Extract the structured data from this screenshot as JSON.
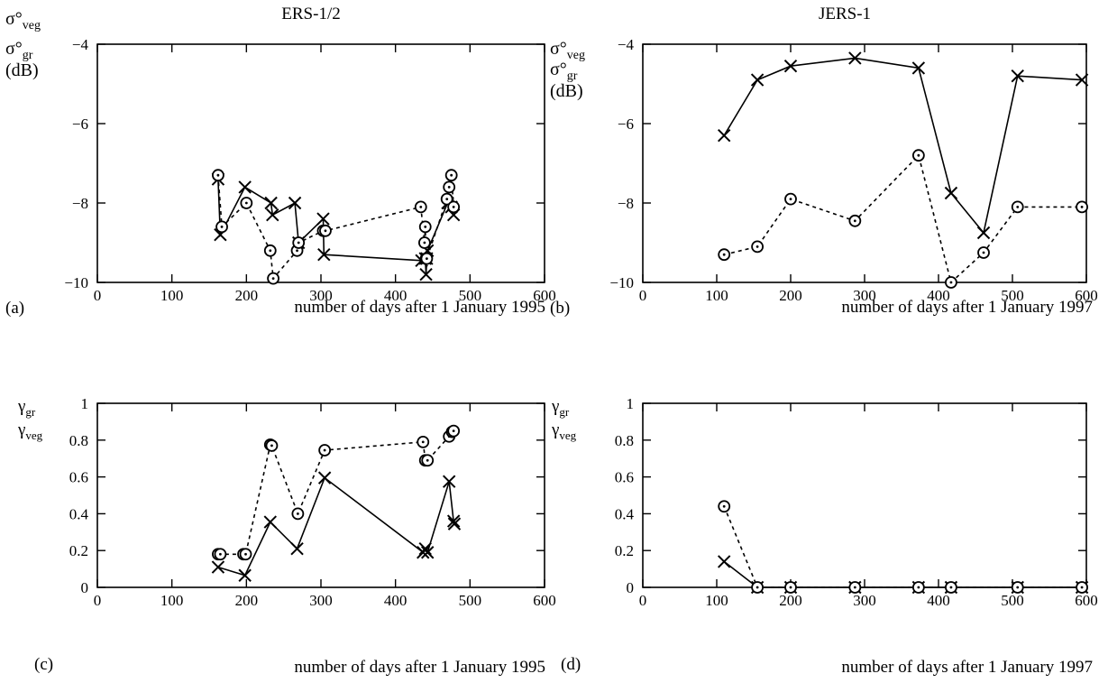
{
  "columns": [
    "ERS-1/2",
    "JERS-1"
  ],
  "legend": {
    "x_marker_series": "x markers, solid line",
    "o_marker_series": "circle markers, dashed line"
  },
  "chart_data": [
    {
      "type": "line",
      "panel_label": "(a)",
      "column_title": "ERS-1/2",
      "ylabel_lines": [
        "σ°veg",
        "σ°gr",
        "(dB)"
      ],
      "ylabel_parts": [
        [
          "σ°",
          "veg"
        ],
        [
          "σ°",
          "gr"
        ],
        [
          "(dB)",
          ""
        ]
      ],
      "xlabel": "number of days after 1 January 1995",
      "xlim": [
        0,
        600
      ],
      "ylim": [
        -10,
        -4
      ],
      "xticks": [
        0,
        100,
        200,
        300,
        400,
        500,
        600
      ],
      "yticks": [
        -10,
        -8,
        -6,
        -4
      ],
      "xtick_labels": [
        "0",
        "100",
        "200",
        "300",
        "400",
        "500",
        "600"
      ],
      "ytick_labels": [
        "−10",
        "−8",
        "−6",
        "−4"
      ],
      "grid": false,
      "series": [
        {
          "marker": "x",
          "line": "solid",
          "x": [
            162,
            165,
            198,
            233,
            235,
            265,
            270,
            303,
            304,
            435,
            440,
            441,
            442,
            443,
            470,
            475,
            478
          ],
          "y": [
            -7.4,
            -8.8,
            -7.6,
            -8.0,
            -8.3,
            -8.0,
            -9.0,
            -8.4,
            -9.3,
            -9.45,
            -9.4,
            -9.8,
            -9.4,
            -9.2,
            -8.0,
            -8.1,
            -8.3
          ]
        },
        {
          "marker": "o",
          "line": "dashed",
          "x": [
            162,
            167,
            200,
            232,
            236,
            268,
            270,
            303,
            306,
            434,
            439,
            440,
            441,
            442,
            469,
            472,
            475,
            478
          ],
          "y": [
            -7.3,
            -8.6,
            -8.0,
            -9.2,
            -9.9,
            -9.2,
            -9.0,
            -8.7,
            -8.7,
            -8.1,
            -9.0,
            -8.6,
            -9.4,
            -9.4,
            -7.9,
            -7.6,
            -7.3,
            -8.1
          ]
        }
      ]
    },
    {
      "type": "line",
      "panel_label": "(b)",
      "column_title": "JERS-1",
      "ylabel_lines": [
        "σ°veg",
        "σ°gr",
        "(dB)"
      ],
      "ylabel_parts": [
        [
          "σ°",
          "veg"
        ],
        [
          "σ°",
          "gr"
        ],
        [
          "(dB)",
          ""
        ]
      ],
      "xlabel": "number of days after 1 January 1997",
      "xlim": [
        0,
        600
      ],
      "ylim": [
        -10,
        -4
      ],
      "xticks": [
        0,
        100,
        200,
        300,
        400,
        500,
        600
      ],
      "yticks": [
        -10,
        -8,
        -6,
        -4
      ],
      "xtick_labels": [
        "0",
        "100",
        "200",
        "300",
        "400",
        "500",
        "600"
      ],
      "ytick_labels": [
        "−10",
        "−8",
        "−6",
        "−4"
      ],
      "grid": false,
      "series": [
        {
          "marker": "x",
          "line": "solid",
          "x": [
            110,
            155,
            200,
            287,
            373,
            417,
            461,
            507,
            594
          ],
          "y": [
            -6.3,
            -4.9,
            -4.55,
            -4.35,
            -4.6,
            -7.75,
            -8.75,
            -4.8,
            -4.9
          ]
        },
        {
          "marker": "o",
          "line": "dashed",
          "x": [
            110,
            155,
            200,
            287,
            373,
            417,
            461,
            507,
            594
          ],
          "y": [
            -9.3,
            -9.1,
            -7.9,
            -8.45,
            -6.8,
            -10.0,
            -9.25,
            -8.1,
            -8.1
          ]
        }
      ]
    },
    {
      "type": "line",
      "panel_label": "(c)",
      "ylabel_lines": [
        "γgr",
        "γveg"
      ],
      "ylabel_parts": [
        [
          "γ",
          "gr"
        ],
        [
          "γ",
          "veg"
        ]
      ],
      "xlabel": "number of days after 1 January 1995",
      "xlim": [
        0,
        600
      ],
      "ylim": [
        0,
        1
      ],
      "xticks": [
        0,
        100,
        200,
        300,
        400,
        500,
        600
      ],
      "yticks": [
        0,
        0.2,
        0.4,
        0.6,
        0.8,
        1
      ],
      "xtick_labels": [
        "0",
        "100",
        "200",
        "300",
        "400",
        "500",
        "600"
      ],
      "ytick_labels": [
        "0",
        "0.2",
        "0.4",
        "0.6",
        "0.8",
        "1"
      ],
      "grid": false,
      "series": [
        {
          "marker": "x",
          "line": "solid",
          "x": [
            162,
            198,
            232,
            268,
            305,
            437,
            440,
            443,
            472,
            478,
            479
          ],
          "y": [
            0.11,
            0.065,
            0.355,
            0.21,
            0.595,
            0.19,
            0.21,
            0.19,
            0.575,
            0.36,
            0.345
          ]
        },
        {
          "marker": "o",
          "line": "dashed",
          "x": [
            162,
            165,
            196,
            199,
            232,
            234,
            269,
            305,
            437,
            440,
            443,
            472,
            476,
            478
          ],
          "y": [
            0.18,
            0.18,
            0.18,
            0.18,
            0.775,
            0.77,
            0.4,
            0.745,
            0.79,
            0.69,
            0.69,
            0.82,
            0.845,
            0.85
          ]
        }
      ]
    },
    {
      "type": "line",
      "panel_label": "(d)",
      "ylabel_lines": [
        "γgr",
        "γveg"
      ],
      "ylabel_parts": [
        [
          "γ",
          "gr"
        ],
        [
          "γ",
          "veg"
        ]
      ],
      "xlabel": "number of days after 1 January 1997",
      "xlim": [
        0,
        600
      ],
      "ylim": [
        0,
        1
      ],
      "xticks": [
        0,
        100,
        200,
        300,
        400,
        500,
        600
      ],
      "yticks": [
        0,
        0.2,
        0.4,
        0.6,
        0.8,
        1
      ],
      "xtick_labels": [
        "0",
        "100",
        "200",
        "300",
        "400",
        "500",
        "600"
      ],
      "ytick_labels": [
        "0",
        "0.2",
        "0.4",
        "0.6",
        "0.8",
        "1"
      ],
      "grid": false,
      "series": [
        {
          "marker": "x",
          "line": "solid",
          "x": [
            110,
            155,
            200,
            287,
            373,
            417,
            507,
            594
          ],
          "y": [
            0.14,
            0.0,
            0.0,
            0.0,
            0.0,
            0.0,
            0.0,
            0.0
          ]
        },
        {
          "marker": "o",
          "line": "dashed",
          "x": [
            110,
            155,
            200,
            287,
            373,
            417,
            507,
            594
          ],
          "y": [
            0.44,
            0.0,
            0.0,
            0.0,
            0.0,
            0.0,
            0.0,
            0.0
          ]
        }
      ]
    }
  ]
}
